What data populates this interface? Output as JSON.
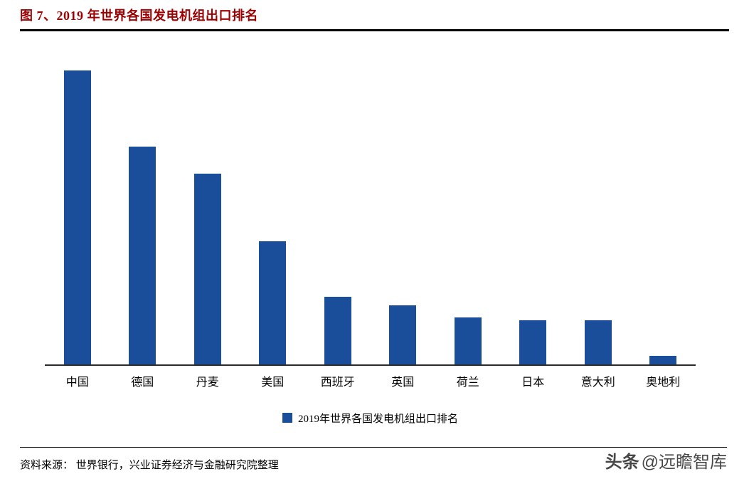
{
  "header": {
    "title": "图 7、2019 年世界各国发电机组出口排名"
  },
  "chart_data": {
    "type": "bar",
    "title": "2019年世界各国发电机组出口排名",
    "categories": [
      "中国",
      "德国",
      "丹麦",
      "美国",
      "西班牙",
      "英国",
      "荷兰",
      "日本",
      "意大利",
      "奥地利"
    ],
    "values": [
      100,
      74,
      65,
      42,
      23,
      20,
      16,
      15,
      15,
      3
    ],
    "xlabel": "",
    "ylabel": "",
    "ylim": [
      0,
      100
    ],
    "y_axis_visible": false,
    "grid": false,
    "legend": {
      "label": "2019年世界各国发电机组出口排名",
      "position": "bottom"
    }
  },
  "footer": {
    "source": "资料来源： 世界银行，兴业证券经济与金融研究院整理",
    "watermark_logo": "头条",
    "watermark_handle": "@远瞻智库"
  },
  "colors": {
    "bar": "#1a4e9b",
    "title": "#9c0000",
    "axis": "#2a2a2a"
  }
}
